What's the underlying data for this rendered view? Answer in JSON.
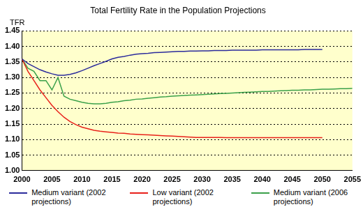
{
  "chart_data": {
    "type": "line",
    "title": "Total Fertility Rate in the Population Projections",
    "y_label": "TFR",
    "x": [
      2000,
      2001,
      2002,
      2003,
      2004,
      2005,
      2006,
      2007,
      2008,
      2009,
      2010,
      2011,
      2012,
      2013,
      2014,
      2015,
      2016,
      2017,
      2018,
      2019,
      2020,
      2021,
      2022,
      2023,
      2024,
      2025,
      2026,
      2027,
      2028,
      2029,
      2030,
      2031,
      2032,
      2033,
      2034,
      2035,
      2036,
      2037,
      2038,
      2039,
      2040,
      2041,
      2042,
      2043,
      2044,
      2045,
      2046,
      2047,
      2048,
      2049,
      2050,
      2051,
      2052,
      2053,
      2054,
      2055
    ],
    "series": [
      {
        "name": "Medium variant (2002 projections)",
        "color": "#2b2b9c",
        "values": [
          1.36,
          1.345,
          1.335,
          1.325,
          1.318,
          1.312,
          1.307,
          1.307,
          1.31,
          1.315,
          1.322,
          1.33,
          1.338,
          1.345,
          1.352,
          1.36,
          1.365,
          1.368,
          1.372,
          1.375,
          1.377,
          1.378,
          1.38,
          1.381,
          1.382,
          1.383,
          1.384,
          1.384,
          1.385,
          1.385,
          1.386,
          1.386,
          1.387,
          1.387,
          1.387,
          1.388,
          1.388,
          1.388,
          1.388,
          1.388,
          1.389,
          1.389,
          1.389,
          1.389,
          1.389,
          1.389,
          1.389,
          1.39,
          1.39,
          1.39,
          1.39,
          null,
          null,
          null,
          null,
          null
        ]
      },
      {
        "name": "Low variant (2002 projections)",
        "color": "#e8201a",
        "values": [
          1.36,
          1.32,
          1.29,
          1.26,
          1.235,
          1.21,
          1.19,
          1.172,
          1.158,
          1.148,
          1.14,
          1.135,
          1.13,
          1.127,
          1.125,
          1.123,
          1.121,
          1.12,
          1.118,
          1.117,
          1.116,
          1.115,
          1.114,
          1.113,
          1.112,
          1.111,
          1.11,
          1.109,
          1.108,
          1.107,
          1.107,
          1.107,
          1.107,
          1.107,
          1.106,
          1.106,
          1.106,
          1.106,
          1.106,
          1.106,
          1.106,
          1.106,
          1.106,
          1.106,
          1.106,
          1.106,
          1.106,
          1.106,
          1.106,
          1.106,
          1.106,
          null,
          null,
          null,
          null,
          null
        ]
      },
      {
        "name": "Medium variant (2006 projections)",
        "color": "#3aa04a",
        "values": [
          1.36,
          1.33,
          1.32,
          1.29,
          1.29,
          1.26,
          1.3,
          1.24,
          1.23,
          1.225,
          1.22,
          1.217,
          1.215,
          1.215,
          1.217,
          1.22,
          1.222,
          1.225,
          1.227,
          1.23,
          1.231,
          1.233,
          1.235,
          1.237,
          1.238,
          1.24,
          1.241,
          1.242,
          1.243,
          1.244,
          1.245,
          1.246,
          1.247,
          1.248,
          1.249,
          1.25,
          1.251,
          1.252,
          1.253,
          1.254,
          1.255,
          1.255,
          1.256,
          1.257,
          1.258,
          1.259,
          1.259,
          1.26,
          1.26,
          1.261,
          1.262,
          1.262,
          1.263,
          1.264,
          1.264,
          1.265
        ]
      }
    ],
    "xlim": [
      2000,
      2055
    ],
    "xticks": [
      2000,
      2005,
      2010,
      2015,
      2020,
      2025,
      2030,
      2035,
      2040,
      2045,
      2050,
      2055
    ],
    "ylim": [
      1.0,
      1.45
    ],
    "yticks": [
      {
        "value": 1.0,
        "label": "1.00"
      },
      {
        "value": 1.05,
        "label": "1.05"
      },
      {
        "value": 1.1,
        "label": "1.10"
      },
      {
        "value": 1.15,
        "label": "1.15"
      },
      {
        "value": 1.2,
        "label": "1.20"
      },
      {
        "value": 1.25,
        "label": "1.25"
      },
      {
        "value": 1.3,
        "label": "1.30"
      },
      {
        "value": 1.35,
        "label": "1.35"
      },
      {
        "value": 1.4,
        "label": "1.40"
      },
      {
        "value": 1.45,
        "label": "1.45"
      }
    ],
    "grid": true,
    "legend": "bottom"
  }
}
